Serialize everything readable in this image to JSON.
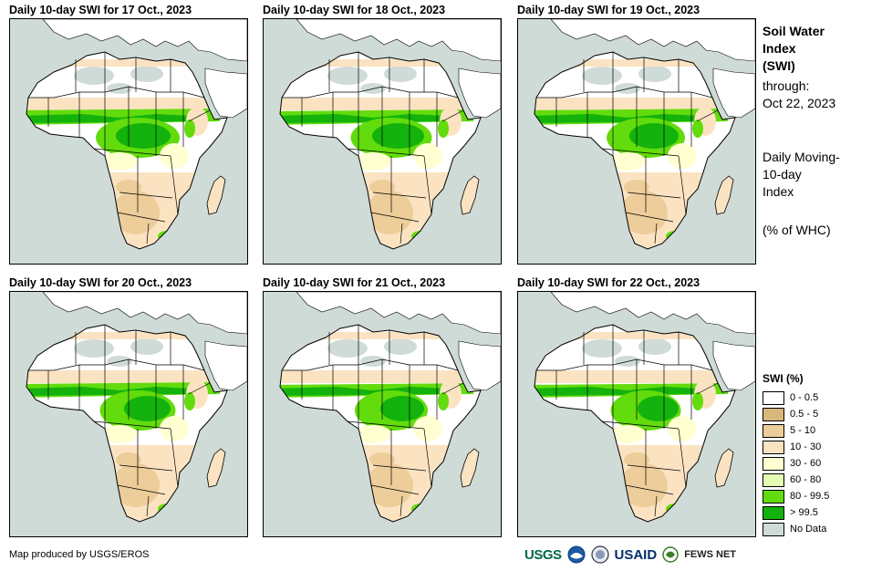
{
  "panels": [
    {
      "title": "Daily 10-day  SWI for 17 Oct., 2023",
      "variant": 0
    },
    {
      "title": "Daily 10-day  SWI for 18 Oct., 2023",
      "variant": 1
    },
    {
      "title": "Daily 10-day  SWI for 19 Oct., 2023",
      "variant": 2
    },
    {
      "title": "Daily 10-day  SWI for 20 Oct., 2023",
      "variant": 3
    },
    {
      "title": "Daily 10-day  SWI for 21 Oct., 2023",
      "variant": 4
    },
    {
      "title": "Daily 10-day  SWI for 22 Oct., 2023",
      "variant": 5
    }
  ],
  "info": {
    "title_line1": "Soil Water",
    "title_line2": "Index",
    "title_line3": "(SWI)",
    "through_label": "through:",
    "through_date": "Oct 22, 2023",
    "method_line1": "Daily Moving-",
    "method_line2": "10-day",
    "method_line3": "Index",
    "unit": "(% of WHC)"
  },
  "legend": {
    "title": "SWI (%)",
    "items": [
      {
        "label": "0 - 0.5",
        "color": "#ffffff"
      },
      {
        "label": "0.5 - 5",
        "color": "#d9b77b"
      },
      {
        "label": "5 - 10",
        "color": "#edcd9a"
      },
      {
        "label": "10 - 30",
        "color": "#fbe3c2"
      },
      {
        "label": "30 - 60",
        "color": "#ffffd2"
      },
      {
        "label": "60 - 80",
        "color": "#e4fcb4"
      },
      {
        "label": "80 - 99.5",
        "color": "#62dc0c"
      },
      {
        "label": "> 99.5",
        "color": "#14b20c"
      },
      {
        "label": "No Data",
        "color": "#cfdbd7"
      }
    ]
  },
  "credit": "Map produced by USGS/EROS",
  "logos": {
    "usgs": "USGS",
    "usaid": "USAID",
    "fews": "FEWS NET"
  },
  "map_colors": {
    "ocean": "#cfdbd7",
    "desert": "#ffffff",
    "dry": "#edcd9a",
    "moderate": "#fbe3c2",
    "semi_wet": "#ffffd2",
    "wet": "#62dc0c",
    "saturated": "#14b20c",
    "border": "#000000"
  }
}
